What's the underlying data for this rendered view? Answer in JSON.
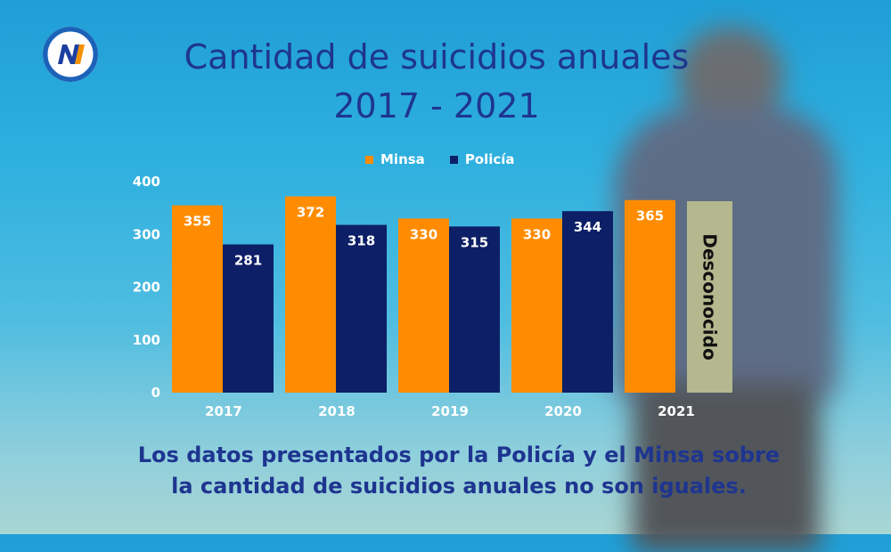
{
  "brand": {
    "logo_text": "NI"
  },
  "title": {
    "line1": "Cantidad de suicidios anuales",
    "line2": "2017 - 2021"
  },
  "footer": {
    "line1": "Los datos presentados por la Policía y el Minsa sobre",
    "line2": "la cantidad de suicidios anuales no son iguales."
  },
  "colors": {
    "minsa": "#ff8c00",
    "policia": "#0d1f66",
    "unknown": "#b5b88e",
    "title": "#1e3590"
  },
  "chart_data": {
    "type": "bar",
    "title": "",
    "xlabel": "",
    "ylabel": "",
    "categories": [
      "2017",
      "2018",
      "2019",
      "2020",
      "2021"
    ],
    "series": [
      {
        "name": "Minsa",
        "values": [
          355,
          372,
          330,
          330,
          365
        ]
      },
      {
        "name": "Policía",
        "values": [
          281,
          318,
          315,
          344,
          null
        ]
      }
    ],
    "unknown_label": "Desconocido",
    "yticks": [
      0,
      100,
      200,
      300,
      400
    ],
    "ylim": [
      0,
      400
    ],
    "grid": false,
    "legend_position": "top-center"
  }
}
